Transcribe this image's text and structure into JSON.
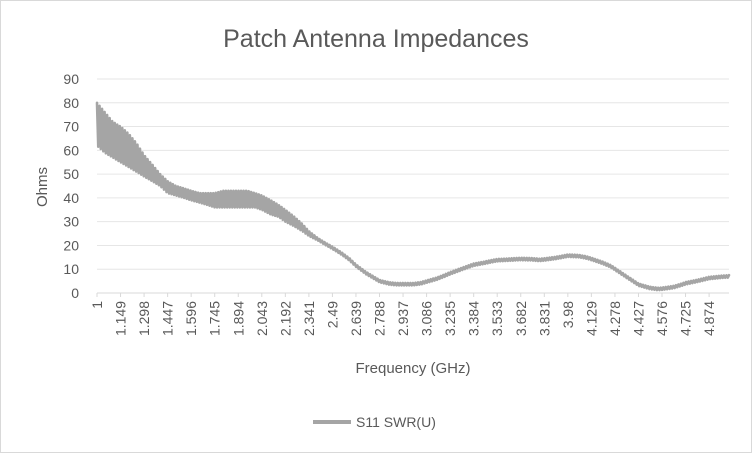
{
  "chart_data": {
    "type": "line",
    "title": "Patch Antenna Impedances",
    "xlabel": "Frequency (GHz)",
    "ylabel": "Ohms",
    "ylim": [
      0,
      90
    ],
    "yticks": [
      0,
      10,
      20,
      30,
      40,
      50,
      60,
      70,
      80,
      90
    ],
    "xlim": [
      1,
      5
    ],
    "xtick_labels": [
      "1",
      "1.149",
      "1.298",
      "1.447",
      "1.596",
      "1.745",
      "1.894",
      "2.043",
      "2.192",
      "2.341",
      "2.49",
      "2.639",
      "2.788",
      "2.937",
      "3.086",
      "3.235",
      "3.384",
      "3.533",
      "3.682",
      "3.831",
      "3.98",
      "4.129",
      "4.278",
      "4.427",
      "4.576",
      "4.725",
      "4.874"
    ],
    "grid": true,
    "legend": "bottom",
    "series": [
      {
        "name": "S11 SWR(U)",
        "color": "#a5a5a5",
        "x": [
          1.0,
          1.05,
          1.1,
          1.149,
          1.2,
          1.25,
          1.298,
          1.35,
          1.4,
          1.447,
          1.5,
          1.55,
          1.596,
          1.65,
          1.7,
          1.745,
          1.8,
          1.85,
          1.894,
          1.95,
          2.0,
          2.043,
          2.1,
          2.15,
          2.192,
          2.25,
          2.3,
          2.341,
          2.4,
          2.45,
          2.49,
          2.55,
          2.6,
          2.639,
          2.7,
          2.75,
          2.788,
          2.85,
          2.9,
          2.937,
          3.0,
          3.05,
          3.086,
          3.15,
          3.2,
          3.235,
          3.3,
          3.35,
          3.384,
          3.45,
          3.5,
          3.533,
          3.6,
          3.65,
          3.682,
          3.75,
          3.8,
          3.831,
          3.9,
          3.95,
          3.98,
          4.05,
          4.1,
          4.129,
          4.2,
          4.25,
          4.278,
          4.35,
          4.4,
          4.427,
          4.5,
          4.55,
          4.576,
          4.65,
          4.7,
          4.725,
          4.8,
          4.85,
          4.874,
          4.95,
          5.0
        ],
        "low": [
          62,
          59,
          57,
          55,
          53,
          51,
          49,
          47,
          45,
          42,
          41,
          40,
          39,
          38,
          37,
          36,
          36,
          36,
          36,
          36,
          36,
          35,
          33,
          32,
          30,
          28,
          26,
          24,
          22,
          20,
          18.5,
          16,
          13.5,
          11,
          8,
          6,
          4.5,
          3.5,
          3.2,
          3.2,
          3.2,
          3.6,
          4.3,
          5.5,
          6.8,
          7.8,
          9.4,
          10.6,
          11.4,
          12.2,
          12.9,
          13.3,
          13.5,
          13.7,
          13.8,
          13.7,
          13.4,
          13.6,
          14.2,
          14.8,
          15.2,
          15.0,
          14.4,
          13.8,
          12.2,
          10.8,
          9.6,
          6.4,
          4.2,
          3.0,
          1.6,
          1.2,
          1.3,
          2.0,
          3.0,
          3.6,
          4.6,
          5.4,
          5.8,
          6.3,
          6.5
        ],
        "high": [
          80,
          76,
          72,
          70,
          67,
          63,
          58,
          54,
          50,
          47,
          45,
          44,
          43,
          42,
          42,
          42,
          43,
          43,
          43,
          43,
          42,
          41,
          39,
          37,
          35,
          32,
          29,
          26,
          23,
          21,
          19.5,
          17,
          14.5,
          12,
          9,
          7,
          5.5,
          4.5,
          4.2,
          4.2,
          4.2,
          4.6,
          5.3,
          6.5,
          7.8,
          8.8,
          10.4,
          11.6,
          12.4,
          13.2,
          13.9,
          14.3,
          14.5,
          14.7,
          14.8,
          14.7,
          14.4,
          14.6,
          15.2,
          15.8,
          16.2,
          16.0,
          15.4,
          14.8,
          13.2,
          11.8,
          10.6,
          7.4,
          5.2,
          4.0,
          2.6,
          2.2,
          2.3,
          3.0,
          4.0,
          4.6,
          5.6,
          6.4,
          6.8,
          7.3,
          7.5
        ]
      }
    ]
  }
}
